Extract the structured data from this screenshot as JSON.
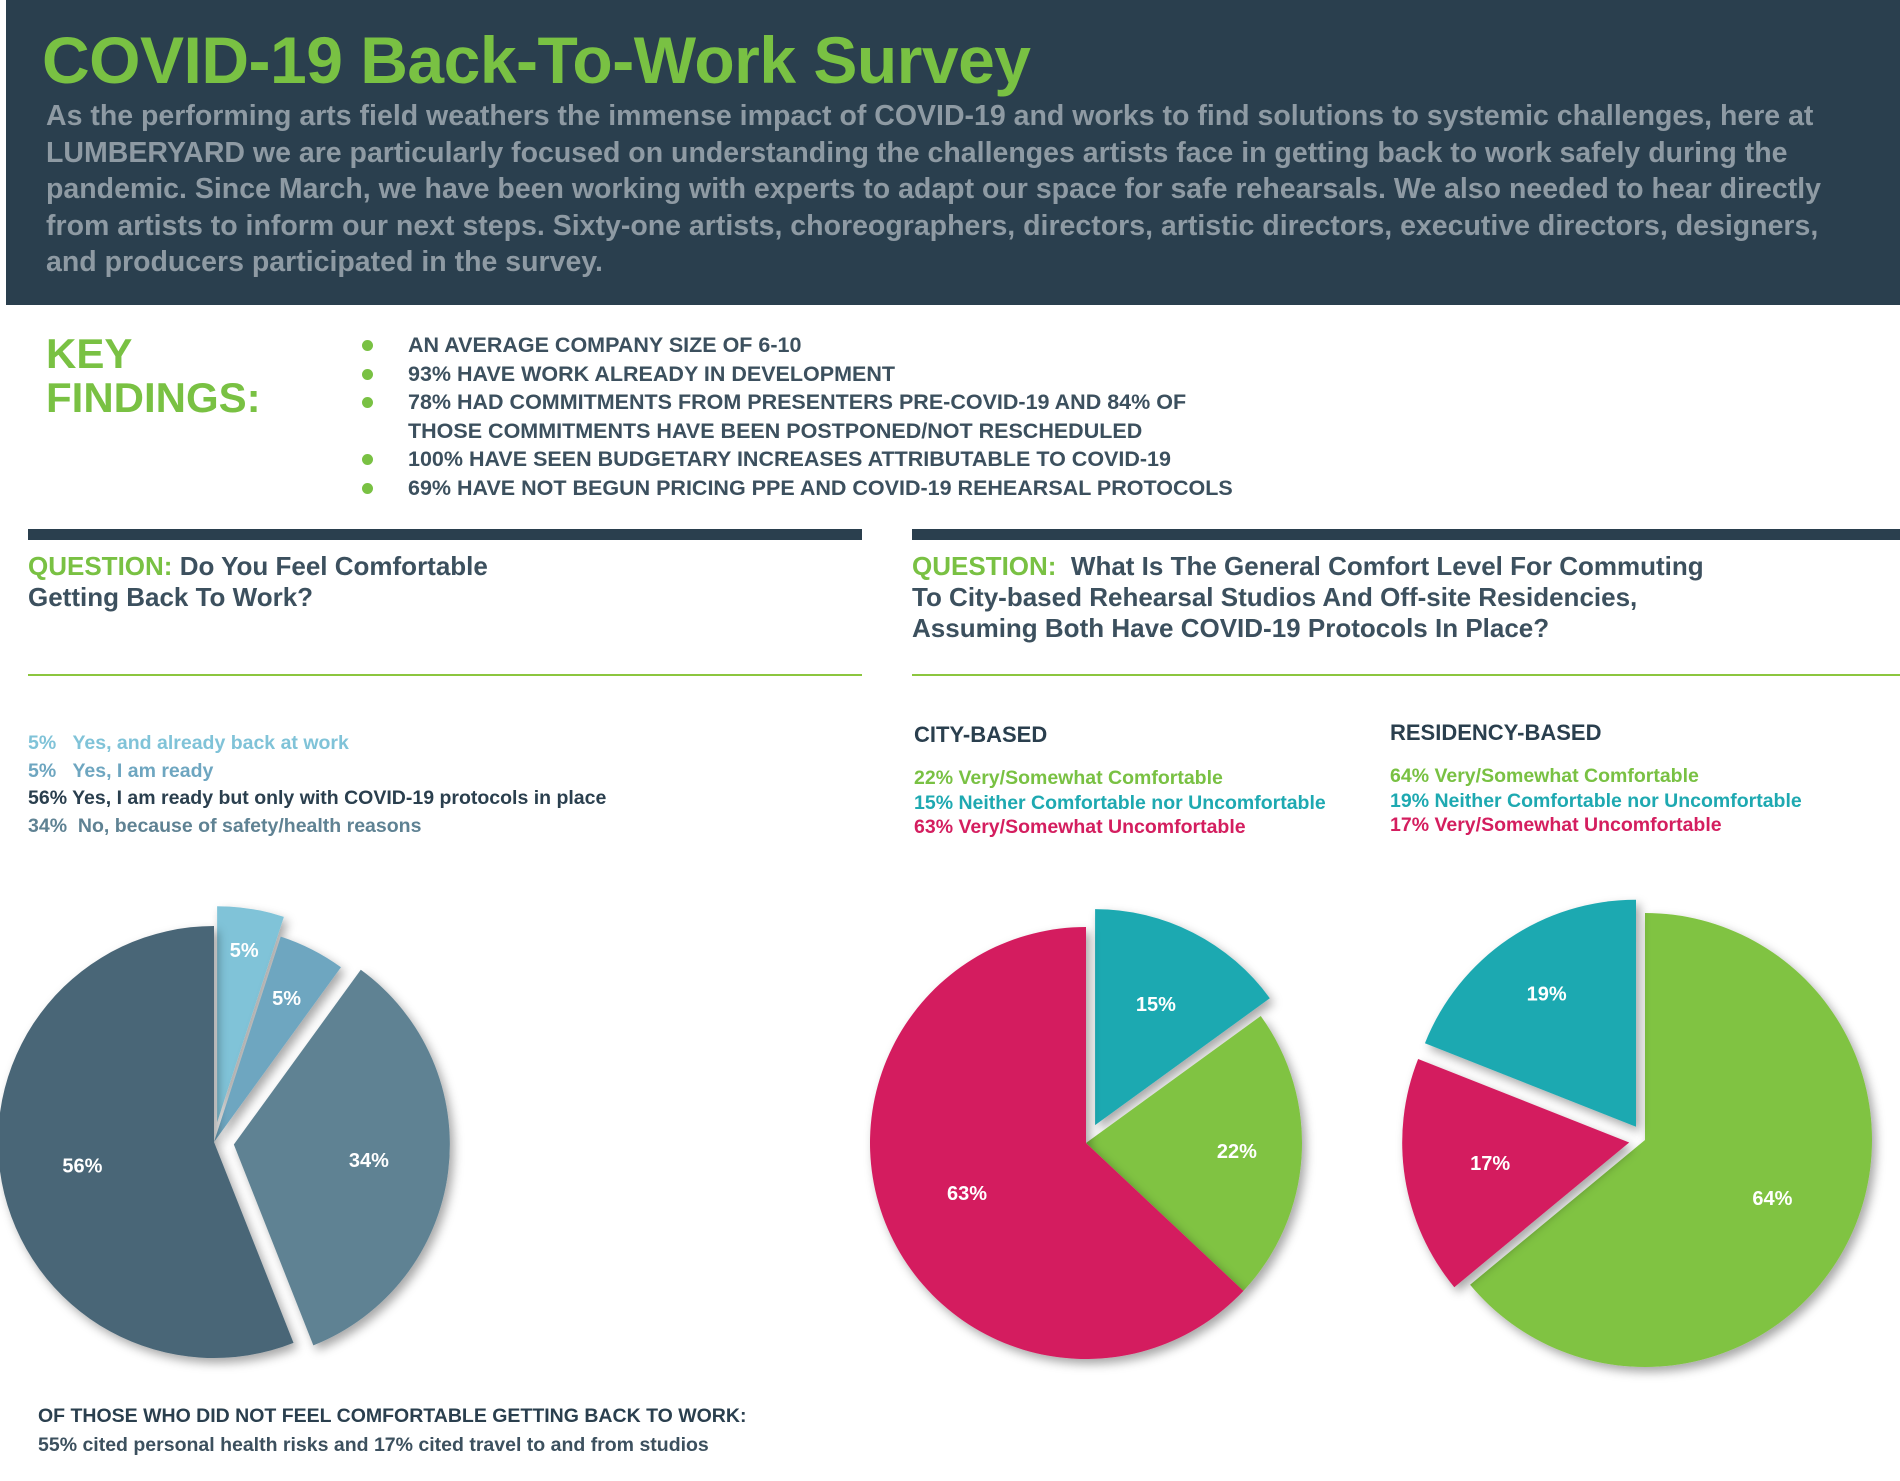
{
  "header": {
    "title": "COVID-19 Back-To-Work Survey",
    "intro": "As the performing arts field weathers the immense impact of COVID-19 and works to find solutions to systemic challenges, here at LUMBERYARD we are particularly focused on understanding the challenges artists face in getting back to work safely during the pandemic. Since March, we have been working with experts to adapt our space for safe rehearsals. We also needed to hear directly from artists to inform our next steps. Sixty-one artists, choreographers, directors, artistic directors, executive directors, designers, and producers participated in the survey."
  },
  "key_findings": {
    "title_line1": "KEY",
    "title_line2": "FINDINGS:",
    "items": [
      "AN AVERAGE COMPANY SIZE OF 6-10",
      "93% HAVE WORK ALREADY IN DEVELOPMENT",
      "78% HAD COMMITMENTS FROM PRESENTERS PRE-COVID-19 AND 84% OF THOSE COMMITMENTS HAVE BEEN POSTPONED/NOT RESCHEDULED",
      "100% HAVE SEEN BUDGETARY INCREASES ATTRIBUTABLE TO COVID-19",
      "69% HAVE NOT BEGUN PRICING PPE AND COVID-19 REHEARSAL PROTOCOLS"
    ],
    "bullet_color": "#79c143"
  },
  "question1": {
    "label": "QUESTION:",
    "text_line1": "Do You Feel Comfortable",
    "text_line2": "Getting Back To Work?"
  },
  "question2": {
    "label": "QUESTION:",
    "text_line1": "What Is The General Comfort Level For Commuting",
    "text_line2": "To City-based Rehearsal Studios And Off-site Residencies,",
    "text_line3": "Assuming Both Have COVID-19 Protocols In Place?"
  },
  "colors": {
    "dark_navy": "#2a3f4e",
    "brand_green": "#79c143",
    "chart_green": "#80c342",
    "teal": "#1ea9b1",
    "crimson": "#d41e5f",
    "light_blue": "#80c3d8",
    "mid_blue": "#6ea6c0",
    "slate": "#5f8293",
    "dark_slate": "#4a6677"
  },
  "chart_data": [
    {
      "type": "pie",
      "legend": [
        {
          "pct": "5%",
          "text": "Yes, and already back at work",
          "color": "#80c3d8"
        },
        {
          "pct": "5%",
          "text": "Yes, I am ready",
          "color": "#6ea6c0"
        },
        {
          "pct": "56%",
          "text": "Yes, I am ready but only with COVID-19 protocols in place",
          "color": "#2a3f4e"
        },
        {
          "pct": "34%",
          "text": "No, because of safety/health reasons",
          "color": "#5f8293"
        }
      ],
      "slices": [
        {
          "name": "Yes, and already back at work",
          "value": 5,
          "label": "5%",
          "color": "#80c3d8",
          "exploded": true
        },
        {
          "name": "Yes, I am ready",
          "value": 5,
          "label": "5%",
          "color": "#6ea6c0",
          "exploded": false
        },
        {
          "name": "No, because of safety/health reasons",
          "value": 34,
          "label": "34%",
          "color": "#5f8293",
          "exploded": true
        },
        {
          "name": "Yes, I am ready but only with COVID-19 protocols in place",
          "value": 56,
          "label": "56%",
          "color": "#4a6677",
          "exploded": false
        }
      ]
    },
    {
      "type": "pie",
      "title": "CITY-BASED",
      "legend": [
        {
          "text": "22% Very/Somewhat Comfortable",
          "color": "#79c143"
        },
        {
          "text": "15% Neither Comfortable nor Uncomfortable",
          "color": "#1ea9b1"
        },
        {
          "text": "63% Very/Somewhat Uncomfortable",
          "color": "#d41e5f"
        }
      ],
      "slices": [
        {
          "name": "Neither Comfortable nor Uncomfortable",
          "value": 15,
          "label": "15%",
          "color": "#1ea9b1",
          "exploded": true
        },
        {
          "name": "Very/Somewhat Comfortable",
          "value": 22,
          "label": "22%",
          "color": "#80c342",
          "exploded": false
        },
        {
          "name": "Very/Somewhat Uncomfortable",
          "value": 63,
          "label": "63%",
          "color": "#d41e5f",
          "exploded": false
        }
      ]
    },
    {
      "type": "pie",
      "title": "RESIDENCY-BASED",
      "legend": [
        {
          "text": "64% Very/Somewhat Comfortable",
          "color": "#79c143"
        },
        {
          "text": "19% Neither Comfortable nor Uncomfortable",
          "color": "#1ea9b1"
        },
        {
          "text": "17% Very/Somewhat Uncomfortable",
          "color": "#d41e5f"
        }
      ],
      "slices": [
        {
          "name": "Very/Somewhat Comfortable",
          "value": 64,
          "label": "64%",
          "color": "#80c342",
          "exploded": false
        },
        {
          "name": "Very/Somewhat Uncomfortable",
          "value": 17,
          "label": "17%",
          "color": "#d41e5f",
          "exploded": true
        },
        {
          "name": "Neither Comfortable nor Uncomfortable",
          "value": 19,
          "label": "19%",
          "color": "#1ea9b1",
          "exploded": true
        }
      ]
    }
  ],
  "footnote": {
    "title": "OF THOSE WHO DID NOT FEEL COMFORTABLE GETTING BACK TO WORK:",
    "body": "55% cited personal health risks and 17% cited travel to and from studios"
  }
}
